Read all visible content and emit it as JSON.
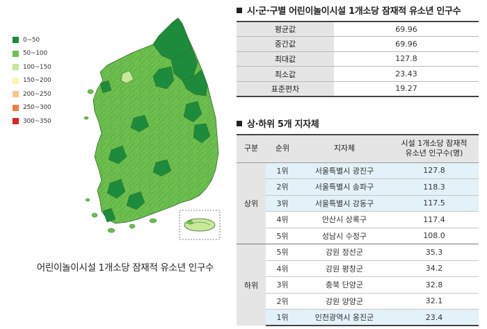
{
  "legend": [
    {
      "label": "0~50",
      "color": "#1e8a3c"
    },
    {
      "label": "50~100",
      "color": "#6cbf4e"
    },
    {
      "label": "100~150",
      "color": "#c8e89a"
    },
    {
      "label": "150~200",
      "color": "#fbf2b2"
    },
    {
      "label": "200~250",
      "color": "#f7c88a"
    },
    {
      "label": "250~300",
      "color": "#ef7d3c"
    },
    {
      "label": "300~350",
      "color": "#d8232a"
    }
  ],
  "map_caption": "어린이놀이시설 1개소당 잠재적 유소년 인구수",
  "stats_section": {
    "title": "시·군·구별 어린이놀이시설 1개소당 잠재적 유소년 인구수",
    "rows": [
      {
        "label": "평균값",
        "value": "69.96"
      },
      {
        "label": "중간값",
        "value": "69.96"
      },
      {
        "label": "최대값",
        "value": "127.8"
      },
      {
        "label": "최소값",
        "value": "23.43"
      },
      {
        "label": "표준편차",
        "value": "19.27"
      }
    ]
  },
  "rank_section": {
    "title": "상·하위 5개 지자체",
    "headers": {
      "group": "구분",
      "rank": "순위",
      "name": "지자체",
      "value_line1": "시설 1개소당 잠재적",
      "value_line2": "유소년 인구수(명)"
    },
    "top_label": "상위",
    "bottom_label": "하위",
    "top": [
      {
        "rank": "1위",
        "name": "서울특별시 광진구",
        "value": "127.8"
      },
      {
        "rank": "2위",
        "name": "서울특별시 송파구",
        "value": "118.3"
      },
      {
        "rank": "3위",
        "name": "서울특별시 강동구",
        "value": "117.5"
      },
      {
        "rank": "4위",
        "name": "안산시 상록구",
        "value": "117.4"
      },
      {
        "rank": "5위",
        "name": "성남시 수정구",
        "value": "108.0"
      }
    ],
    "bottom": [
      {
        "rank": "5위",
        "name": "강원 정선군",
        "value": "35.3"
      },
      {
        "rank": "4위",
        "name": "강원 평창군",
        "value": "34.2"
      },
      {
        "rank": "3위",
        "name": "충북 단양군",
        "value": "32.8"
      },
      {
        "rank": "2위",
        "name": "강원 양양군",
        "value": "32.1"
      },
      {
        "rank": "1위",
        "name": "인천광역시 옹진군",
        "value": "23.4"
      }
    ]
  }
}
